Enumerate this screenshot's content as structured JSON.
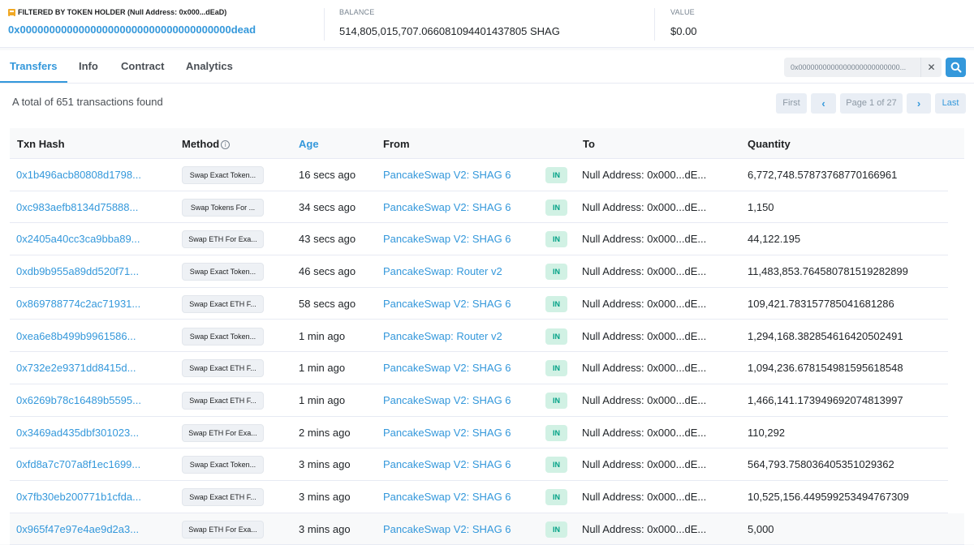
{
  "filter": {
    "label": "FILTERED BY TOKEN HOLDER (Null Address: 0x000...dEaD)",
    "address": "0x000000000000000000000000000000000000dead"
  },
  "balance": {
    "label": "BALANCE",
    "value": "514,805,015,707.066081094401437805 SHAG"
  },
  "value": {
    "label": "VALUE",
    "value": "$0.00"
  },
  "tabs": [
    "Transfers",
    "Info",
    "Contract",
    "Analytics"
  ],
  "search": {
    "value": "0x0000000000000000000000000...",
    "clear_icon": "close-icon",
    "button_icon": "search-icon"
  },
  "summary": "A total of 651 transactions found",
  "pagination": {
    "first": "First",
    "prev": "‹",
    "page": "Page 1 of 27",
    "next": "›",
    "last": "Last"
  },
  "columns": {
    "hash": "Txn Hash",
    "method": "Method",
    "age": "Age",
    "from": "From",
    "to": "To",
    "quantity": "Quantity"
  },
  "colors": {
    "accent": "#3498db",
    "in_badge_bg": "#d1f1e4",
    "in_badge_text": "#00a186"
  },
  "rows": [
    {
      "hash": "0x1b496acb80808d1798...",
      "method": "Swap Exact Token...",
      "age": "16 secs ago",
      "from": "PancakeSwap V2: SHAG 6",
      "dir": "IN",
      "to": "Null Address: 0x000...dE...",
      "qty": "6,772,748.57873768770166961"
    },
    {
      "hash": "0xc983aefb8134d75888...",
      "method": "Swap Tokens For ...",
      "age": "34 secs ago",
      "from": "PancakeSwap V2: SHAG 6",
      "dir": "IN",
      "to": "Null Address: 0x000...dE...",
      "qty": "1,150"
    },
    {
      "hash": "0x2405a40cc3ca9bba89...",
      "method": "Swap ETH For Exa...",
      "age": "43 secs ago",
      "from": "PancakeSwap V2: SHAG 6",
      "dir": "IN",
      "to": "Null Address: 0x000...dE...",
      "qty": "44,122.195"
    },
    {
      "hash": "0xdb9b955a89dd520f71...",
      "method": "Swap Exact Token...",
      "age": "46 secs ago",
      "from": "PancakeSwap: Router v2",
      "dir": "IN",
      "to": "Null Address: 0x000...dE...",
      "qty": "11,483,853.764580781519282899"
    },
    {
      "hash": "0x869788774c2ac71931...",
      "method": "Swap Exact ETH F...",
      "age": "58 secs ago",
      "from": "PancakeSwap V2: SHAG 6",
      "dir": "IN",
      "to": "Null Address: 0x000...dE...",
      "qty": "109,421.783157785041681286"
    },
    {
      "hash": "0xea6e8b499b9961586...",
      "method": "Swap Exact Token...",
      "age": "1 min ago",
      "from": "PancakeSwap: Router v2",
      "dir": "IN",
      "to": "Null Address: 0x000...dE...",
      "qty": "1,294,168.382854616420502491"
    },
    {
      "hash": "0x732e2e9371dd8415d...",
      "method": "Swap Exact ETH F...",
      "age": "1 min ago",
      "from": "PancakeSwap V2: SHAG 6",
      "dir": "IN",
      "to": "Null Address: 0x000...dE...",
      "qty": "1,094,236.678154981595618548"
    },
    {
      "hash": "0x6269b78c16489b5595...",
      "method": "Swap Exact ETH F...",
      "age": "1 min ago",
      "from": "PancakeSwap V2: SHAG 6",
      "dir": "IN",
      "to": "Null Address: 0x000...dE...",
      "qty": "1,466,141.173949692074813997"
    },
    {
      "hash": "0x3469ad435dbf301023...",
      "method": "Swap ETH For Exa...",
      "age": "2 mins ago",
      "from": "PancakeSwap V2: SHAG 6",
      "dir": "IN",
      "to": "Null Address: 0x000...dE...",
      "qty": "110,292"
    },
    {
      "hash": "0xfd8a7c707a8f1ec1699...",
      "method": "Swap Exact Token...",
      "age": "3 mins ago",
      "from": "PancakeSwap V2: SHAG 6",
      "dir": "IN",
      "to": "Null Address: 0x000...dE...",
      "qty": "564,793.758036405351029362"
    },
    {
      "hash": "0x7fb30eb200771b1cfda...",
      "method": "Swap Exact ETH F...",
      "age": "3 mins ago",
      "from": "PancakeSwap V2: SHAG 6",
      "dir": "IN",
      "to": "Null Address: 0x000...dE...",
      "qty": "10,525,156.449599253494767309"
    },
    {
      "hash": "0x965f47e97e4ae9d2a3...",
      "method": "Swap ETH For Exa...",
      "age": "3 mins ago",
      "from": "PancakeSwap V2: SHAG 6",
      "dir": "IN",
      "to": "Null Address: 0x000...dE...",
      "qty": "5,000"
    }
  ]
}
